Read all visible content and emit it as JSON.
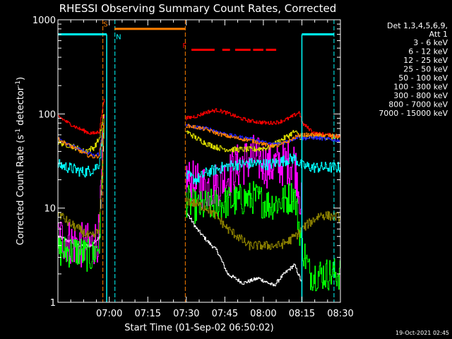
{
  "chart_data": {
    "type": "line",
    "title": "RHESSI Observing Summary Count Rates, Corrected",
    "xlabel": "Start Time (01-Sep-02 06:50:02)",
    "ylabel": "Corrected Count Rate (s-1 detector-1)",
    "ylabel_parts": [
      "Corrected Count Rate (s",
      "-1",
      " detector",
      "-1",
      ")"
    ],
    "xlim": [
      -10,
      100
    ],
    "ylim": [
      1,
      1000
    ],
    "yscale": "log",
    "x_ticks": [
      {
        "v": 10,
        "label": "07:00"
      },
      {
        "v": 25,
        "label": "07:15"
      },
      {
        "v": 40,
        "label": "07:30"
      },
      {
        "v": 55,
        "label": "07:45"
      },
      {
        "v": 70,
        "label": "08:00"
      },
      {
        "v": 85,
        "label": "08:15"
      },
      {
        "v": 100,
        "label": "08:30"
      }
    ],
    "y_ticks": [
      {
        "v": 1,
        "label": "1"
      },
      {
        "v": 10,
        "label": "10"
      },
      {
        "v": 100,
        "label": "100"
      },
      {
        "v": 1000,
        "label": "1000"
      }
    ],
    "legend": {
      "placement": "right",
      "header": [
        "Det 1,3,4,5,6,9,",
        "Att 1"
      ],
      "entries": [
        {
          "label": "3 - 6 keV",
          "color": "#ffffff"
        },
        {
          "label": "6 - 12 keV",
          "color": "#ff00ff"
        },
        {
          "label": "12 - 25 keV",
          "color": "#00ff00"
        },
        {
          "label": "25 - 50 keV",
          "color": "#00ffff"
        },
        {
          "label": "50 - 100 keV",
          "color": "#d8d800"
        },
        {
          "label": "100 - 300 keV",
          "color": "#ff0000"
        },
        {
          "label": "300 - 800 keV",
          "color": "#2020ff"
        },
        {
          "label": "800 - 7000 keV",
          "color": "#ff8000"
        },
        {
          "label": "7000 - 15000 keV",
          "color": "#8b8000"
        }
      ]
    },
    "annotations": {
      "s": "S",
      "n": "N",
      "f": "F"
    },
    "footer": "19-Oct-2021 02:45",
    "series": [
      {
        "color": "#000000",
        "points": [
          [
            -10,
            5
          ],
          [
            -2,
            4
          ],
          [
            3,
            4
          ],
          [
            6,
            5
          ],
          [
            8,
            80
          ],
          [
            40,
            9
          ],
          [
            44,
            6
          ],
          [
            48,
            4.5
          ],
          [
            52,
            3.5
          ],
          [
            56,
            2
          ],
          [
            62,
            1.6
          ],
          [
            68,
            1.8
          ],
          [
            74,
            1.5
          ],
          [
            78,
            2
          ],
          [
            82,
            2.5
          ],
          [
            85,
            1.6
          ]
        ]
      },
      {
        "color": "#ff00ff",
        "points": [
          [
            -10,
            5
          ],
          [
            -2,
            4
          ],
          [
            3,
            4
          ],
          [
            6,
            5
          ],
          [
            8,
            80
          ],
          [
            40,
            20
          ],
          [
            44,
            17
          ],
          [
            48,
            17
          ],
          [
            52,
            18
          ],
          [
            56,
            22
          ],
          [
            60,
            28
          ],
          [
            66,
            35
          ],
          [
            72,
            28
          ],
          [
            78,
            30
          ],
          [
            82,
            32
          ],
          [
            85,
            10
          ]
        ]
      },
      {
        "color": "#00ff00",
        "points": [
          [
            -10,
            3.5
          ],
          [
            -2,
            3.5
          ],
          [
            3,
            3
          ],
          [
            6,
            4
          ],
          [
            8,
            90
          ],
          [
            40,
            12
          ],
          [
            44,
            10
          ],
          [
            48,
            10.5
          ],
          [
            52,
            11
          ],
          [
            56,
            11.5
          ],
          [
            60,
            12
          ],
          [
            66,
            13
          ],
          [
            72,
            11
          ],
          [
            78,
            12
          ],
          [
            82,
            14
          ],
          [
            85,
            4
          ],
          [
            88,
            2
          ],
          [
            100,
            2
          ]
        ]
      },
      {
        "color": "#00ffff",
        "points": [
          [
            -10,
            29
          ],
          [
            -4,
            26
          ],
          [
            0,
            24
          ],
          [
            4,
            26
          ],
          [
            6,
            30
          ],
          [
            8,
            80
          ],
          [
            40,
            22
          ],
          [
            44,
            20
          ],
          [
            48,
            24
          ],
          [
            52,
            26
          ],
          [
            56,
            28
          ],
          [
            60,
            29
          ],
          [
            66,
            30
          ],
          [
            72,
            29
          ],
          [
            78,
            32
          ],
          [
            82,
            34
          ],
          [
            85,
            28
          ],
          [
            90,
            27
          ],
          [
            100,
            27
          ]
        ]
      },
      {
        "color": "#d8d800",
        "points": [
          [
            -10,
            50
          ],
          [
            -4,
            45
          ],
          [
            0,
            40
          ],
          [
            4,
            44
          ],
          [
            6,
            55
          ],
          [
            8,
            100
          ],
          [
            40,
            65
          ],
          [
            44,
            55
          ],
          [
            48,
            48
          ],
          [
            52,
            44
          ],
          [
            56,
            42
          ],
          [
            60,
            42
          ],
          [
            66,
            42
          ],
          [
            72,
            44
          ],
          [
            78,
            55
          ],
          [
            82,
            65
          ],
          [
            85,
            55
          ],
          [
            90,
            58
          ],
          [
            100,
            55
          ]
        ]
      },
      {
        "color": "#ff0000",
        "points": [
          [
            -10,
            95
          ],
          [
            -6,
            80
          ],
          [
            -2,
            70
          ],
          [
            2,
            63
          ],
          [
            4,
            62
          ],
          [
            6,
            65
          ],
          [
            8,
            150
          ],
          [
            40,
            90
          ],
          [
            44,
            95
          ],
          [
            48,
            105
          ],
          [
            52,
            110
          ],
          [
            56,
            102
          ],
          [
            60,
            92
          ],
          [
            64,
            85
          ],
          [
            68,
            82
          ],
          [
            72,
            80
          ],
          [
            76,
            82
          ],
          [
            80,
            90
          ],
          [
            84,
            105
          ],
          [
            85,
            80
          ],
          [
            90,
            62
          ],
          [
            100,
            58
          ]
        ]
      },
      {
        "color": "#2020ff",
        "points": [
          [
            -10,
            55
          ],
          [
            -6,
            48
          ],
          [
            -2,
            42
          ],
          [
            2,
            38
          ],
          [
            4,
            36
          ],
          [
            6,
            38
          ],
          [
            8,
            90
          ],
          [
            40,
            75
          ],
          [
            44,
            72
          ],
          [
            48,
            70
          ],
          [
            52,
            65
          ],
          [
            56,
            60
          ],
          [
            60,
            57
          ],
          [
            64,
            55
          ],
          [
            68,
            52
          ],
          [
            72,
            48
          ],
          [
            76,
            48
          ],
          [
            80,
            52
          ],
          [
            84,
            58
          ],
          [
            85,
            55
          ],
          [
            90,
            56
          ],
          [
            100,
            52
          ]
        ]
      },
      {
        "color": "#ff8000",
        "points": [
          [
            -10,
            54
          ],
          [
            -6,
            47
          ],
          [
            -2,
            41
          ],
          [
            2,
            36
          ],
          [
            4,
            35
          ],
          [
            6,
            36
          ],
          [
            8,
            85
          ],
          [
            40,
            75
          ],
          [
            44,
            72
          ],
          [
            48,
            68
          ],
          [
            52,
            62
          ],
          [
            56,
            58
          ],
          [
            60,
            55
          ],
          [
            64,
            53
          ],
          [
            68,
            50
          ],
          [
            72,
            46
          ],
          [
            76,
            46
          ],
          [
            80,
            52
          ],
          [
            84,
            60
          ],
          [
            85,
            60
          ],
          [
            90,
            60
          ],
          [
            100,
            58
          ]
        ]
      },
      {
        "color": "#8b8000",
        "points": [
          [
            -10,
            9
          ],
          [
            -6,
            7
          ],
          [
            -2,
            6
          ],
          [
            2,
            5
          ],
          [
            4,
            5
          ],
          [
            6,
            6
          ],
          [
            8,
            80
          ],
          [
            40,
            12
          ],
          [
            44,
            11
          ],
          [
            48,
            10
          ],
          [
            52,
            8
          ],
          [
            56,
            6
          ],
          [
            60,
            5
          ],
          [
            64,
            4
          ],
          [
            68,
            4
          ],
          [
            72,
            4
          ],
          [
            76,
            4
          ],
          [
            80,
            4.5
          ],
          [
            84,
            5.5
          ],
          [
            85,
            6
          ],
          [
            88,
            7
          ],
          [
            92,
            8.5
          ],
          [
            100,
            8
          ]
        ]
      }
    ],
    "attenuator_segments": [
      {
        "x1": -10,
        "x2": 9,
        "y": 700,
        "color": "#00ffff"
      },
      {
        "x1": 12,
        "x2": 39.6,
        "y": 800,
        "color": "#ff8000"
      },
      {
        "x1": 85,
        "x2": 97.5,
        "y": 700,
        "color": "#00ffff"
      }
    ],
    "flare_flags": [
      [
        42,
        51
      ],
      [
        54,
        57
      ],
      [
        59,
        65
      ],
      [
        66,
        70
      ],
      [
        71,
        75
      ]
    ],
    "vlines": [
      {
        "x": 7.5,
        "color": "#ff8000"
      },
      {
        "x": 39.6,
        "color": "#ff8000"
      },
      {
        "x": 12.2,
        "color": "#00ffff"
      },
      {
        "x": 97.5,
        "color": "#00ffff"
      }
    ]
  }
}
